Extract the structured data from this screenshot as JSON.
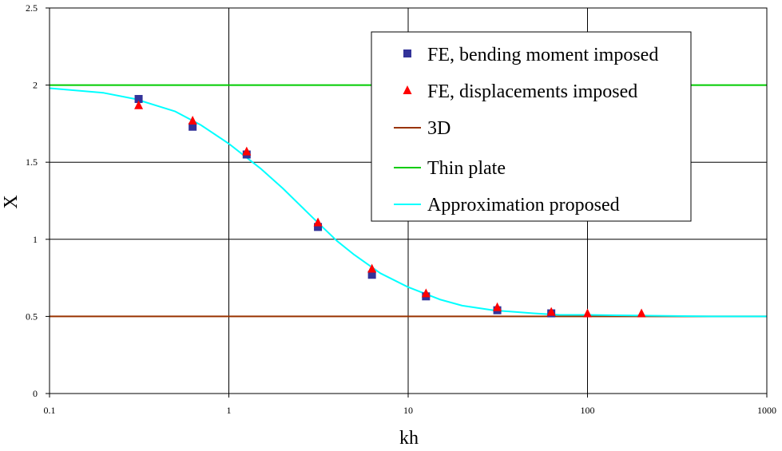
{
  "chart_data": {
    "type": "scatter",
    "x_scale": "log",
    "xlim": [
      0.1,
      1000
    ],
    "ylim": [
      0,
      2.5
    ],
    "xlabel": "kh",
    "ylabel": "X",
    "grid": true,
    "legend_placement": "top-right",
    "x_ticks": [
      "0.1",
      "1",
      "10",
      "100",
      "1000"
    ],
    "y_ticks": [
      "0",
      "0.5",
      "1",
      "1.5",
      "2",
      "2.5"
    ],
    "series": [
      {
        "name": "FE, bending moment imposed",
        "kind": "marker",
        "marker": "square",
        "color": "#333399",
        "x": [
          0.314,
          0.628,
          1.257,
          3.14,
          6.28,
          12.57,
          31.4,
          62.8
        ],
        "y": [
          1.91,
          1.73,
          1.55,
          1.08,
          0.77,
          0.63,
          0.54,
          0.52
        ]
      },
      {
        "name": "FE, displacements imposed",
        "kind": "marker",
        "marker": "triangle",
        "color": "#ff0000",
        "x": [
          0.314,
          0.628,
          1.257,
          3.14,
          6.28,
          12.57,
          31.4,
          62.8,
          100,
          200
        ],
        "y": [
          1.87,
          1.77,
          1.57,
          1.11,
          0.81,
          0.65,
          0.56,
          0.53,
          0.52,
          0.52
        ]
      },
      {
        "name": "3D",
        "kind": "line",
        "color": "#993300",
        "x": [
          0.1,
          1000
        ],
        "y": [
          0.5,
          0.5
        ]
      },
      {
        "name": "Thin plate",
        "kind": "line",
        "color": "#00cc00",
        "x": [
          0.1,
          1000
        ],
        "y": [
          2.0,
          2.0
        ]
      },
      {
        "name": "Approximation proposed",
        "kind": "line",
        "color": "#00ffff",
        "x": [
          0.1,
          0.2,
          0.3,
          0.5,
          0.7,
          1.0,
          1.5,
          2.0,
          3.0,
          4.0,
          5.0,
          7.0,
          10,
          15,
          20,
          30,
          50,
          70,
          100,
          200,
          500,
          1000
        ],
        "y": [
          1.98,
          1.95,
          1.91,
          1.83,
          1.74,
          1.62,
          1.46,
          1.33,
          1.13,
          0.99,
          0.9,
          0.78,
          0.69,
          0.61,
          0.57,
          0.54,
          0.52,
          0.51,
          0.51,
          0.505,
          0.5,
          0.5
        ]
      }
    ]
  }
}
